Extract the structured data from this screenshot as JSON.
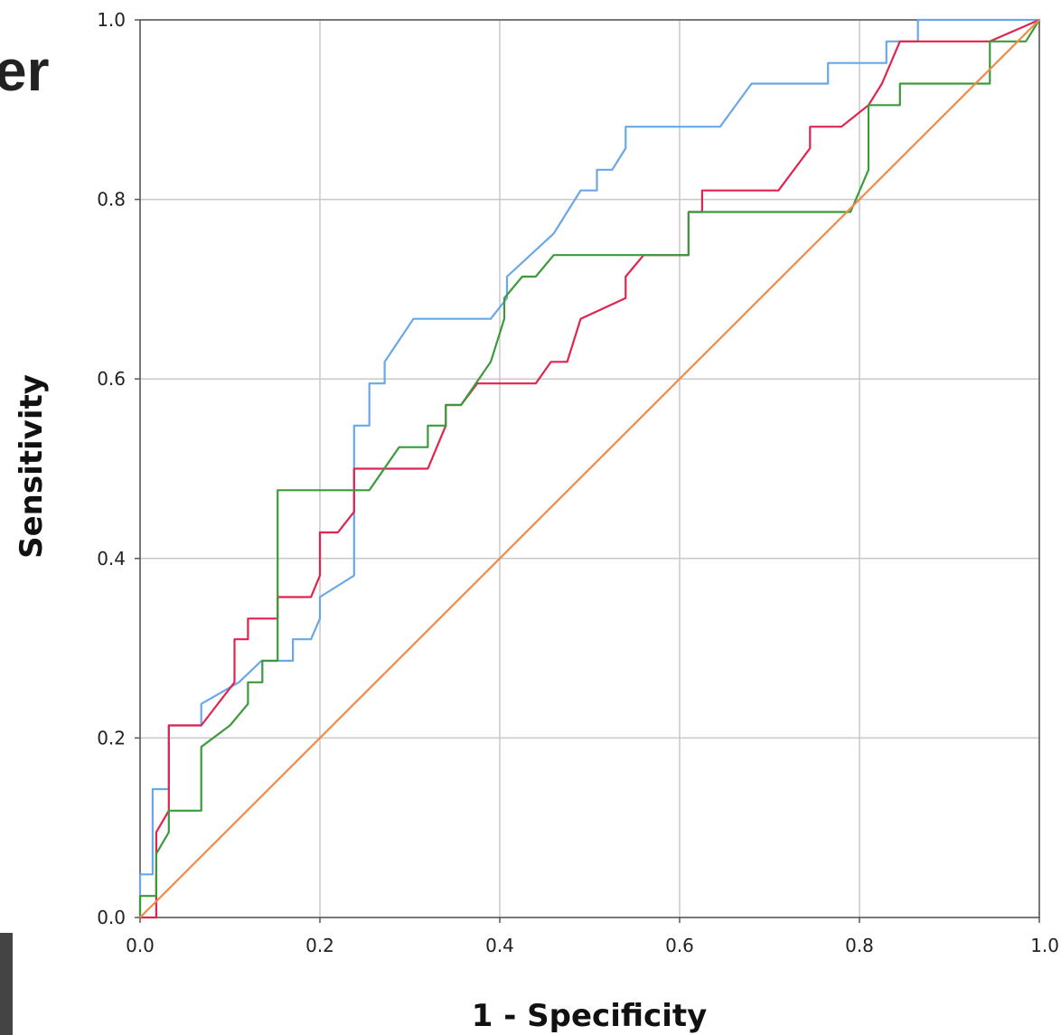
{
  "page_fragment_text": "er",
  "chart_data": {
    "type": "line",
    "title": "",
    "xlabel": "1 - Specificity",
    "ylabel": "Sensitivity",
    "xlim": [
      0,
      1
    ],
    "ylim": [
      0,
      1
    ],
    "x_ticks": [
      "0.0",
      "0.2",
      "0.4",
      "0.6",
      "0.8",
      "1.0"
    ],
    "y_ticks": [
      "0.0",
      "0.2",
      "0.4",
      "0.6",
      "0.8",
      "1.0"
    ],
    "grid": true,
    "legend": "none",
    "series": [
      {
        "color": "#6aa7e8",
        "x": [
          0,
          0,
          0.014,
          0.014,
          0.032,
          0.032,
          0.068,
          0.068,
          0.11,
          0.135,
          0.17,
          0.17,
          0.19,
          0.2,
          0.2,
          0.238,
          0.238,
          0.255,
          0.255,
          0.272,
          0.272,
          0.304,
          0.39,
          0.408,
          0.408,
          0.46,
          0.49,
          0.508,
          0.508,
          0.525,
          0.54,
          0.54,
          0.645,
          0.68,
          0.765,
          0.765,
          0.83,
          0.83,
          0.865,
          0.865,
          1.0
        ],
        "y": [
          0,
          0.048,
          0.048,
          0.143,
          0.143,
          0.214,
          0.214,
          0.238,
          0.262,
          0.286,
          0.286,
          0.31,
          0.31,
          0.333,
          0.357,
          0.381,
          0.548,
          0.548,
          0.595,
          0.595,
          0.619,
          0.667,
          0.667,
          0.69,
          0.714,
          0.762,
          0.81,
          0.81,
          0.833,
          0.833,
          0.857,
          0.881,
          0.881,
          0.929,
          0.929,
          0.952,
          0.952,
          0.976,
          0.976,
          1.0,
          1.0
        ]
      },
      {
        "color": "#e0244e",
        "x": [
          0,
          0.018,
          0.018,
          0.032,
          0.032,
          0.068,
          0.105,
          0.105,
          0.12,
          0.12,
          0.153,
          0.153,
          0.19,
          0.2,
          0.2,
          0.22,
          0.238,
          0.238,
          0.32,
          0.34,
          0.34,
          0.357,
          0.375,
          0.44,
          0.457,
          0.475,
          0.49,
          0.54,
          0.54,
          0.56,
          0.61,
          0.61,
          0.625,
          0.625,
          0.71,
          0.745,
          0.745,
          0.78,
          0.81,
          0.825,
          0.845,
          0.945,
          1.0
        ],
        "y": [
          0,
          0,
          0.095,
          0.119,
          0.214,
          0.214,
          0.262,
          0.31,
          0.31,
          0.333,
          0.333,
          0.357,
          0.357,
          0.381,
          0.429,
          0.429,
          0.452,
          0.5,
          0.5,
          0.548,
          0.571,
          0.571,
          0.595,
          0.595,
          0.619,
          0.619,
          0.667,
          0.69,
          0.714,
          0.738,
          0.738,
          0.786,
          0.786,
          0.81,
          0.81,
          0.857,
          0.881,
          0.881,
          0.905,
          0.929,
          0.976,
          0.976,
          1.0
        ]
      },
      {
        "color": "#3c9a3c",
        "x": [
          0,
          0,
          0.018,
          0.018,
          0.032,
          0.032,
          0.068,
          0.068,
          0.1,
          0.12,
          0.12,
          0.136,
          0.136,
          0.153,
          0.153,
          0.255,
          0.288,
          0.32,
          0.32,
          0.34,
          0.34,
          0.357,
          0.39,
          0.405,
          0.405,
          0.425,
          0.44,
          0.46,
          0.61,
          0.61,
          0.79,
          0.81,
          0.81,
          0.845,
          0.845,
          0.945,
          0.945,
          0.985,
          1.0
        ],
        "y": [
          0,
          0.024,
          0.024,
          0.071,
          0.095,
          0.119,
          0.119,
          0.19,
          0.214,
          0.238,
          0.262,
          0.262,
          0.286,
          0.286,
          0.476,
          0.476,
          0.524,
          0.524,
          0.548,
          0.548,
          0.571,
          0.571,
          0.619,
          0.667,
          0.69,
          0.714,
          0.714,
          0.738,
          0.738,
          0.786,
          0.786,
          0.833,
          0.905,
          0.905,
          0.929,
          0.929,
          0.976,
          0.976,
          1.0
        ]
      },
      {
        "color": "#f08a4b",
        "x": [
          0,
          1
        ],
        "y": [
          0,
          1
        ]
      }
    ]
  }
}
